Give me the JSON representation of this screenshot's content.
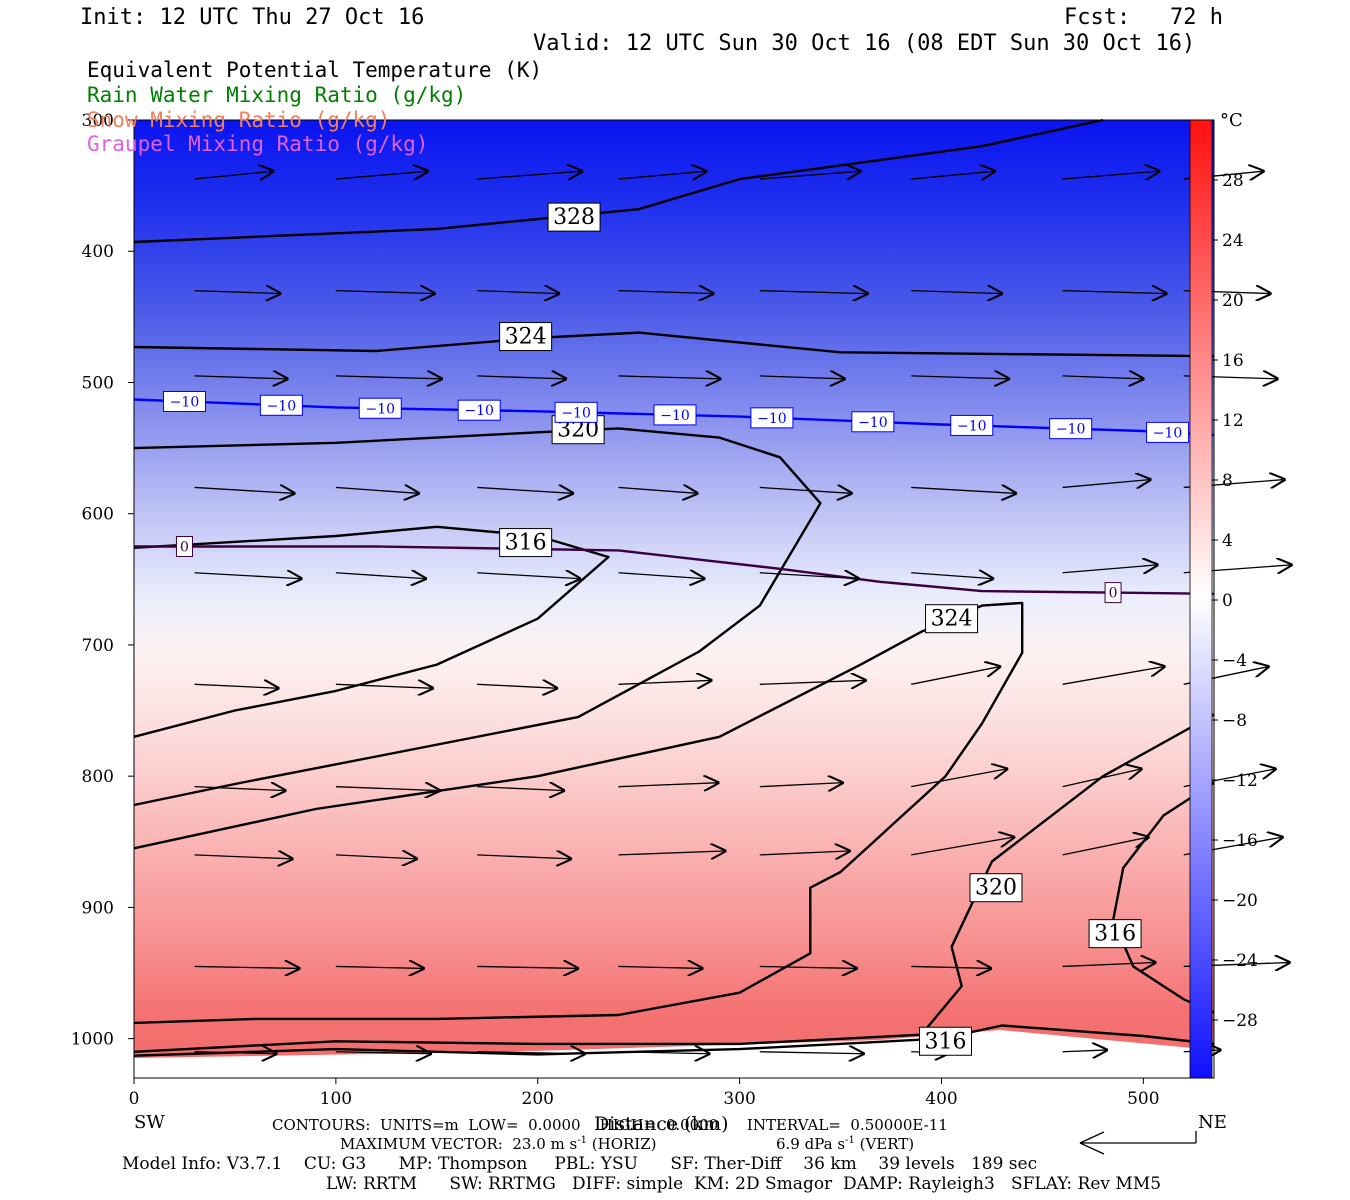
{
  "header": {
    "init": "Init: 12 UTC Thu 27 Oct 16",
    "fcst": "Fcst:   72 h",
    "valid": "Valid: 12 UTC Sun 30 Oct 16 (08 EDT Sun 30 Oct 16)"
  },
  "legend": {
    "theta_e": "Equivalent Potential Temperature (K)",
    "rain": "Rain Water Mixing Ratio (g/kg)",
    "snow": "Snow Mixing Ratio (g/kg)",
    "graupel": "Graupel Mixing Ratio (g/kg)",
    "colors": {
      "theta_e": "#000000",
      "rain": "#008000",
      "snow": "#f08060",
      "graupel": "#e060e0"
    }
  },
  "chart_data": {
    "type": "cross-section",
    "xlabel": "Distance (km)",
    "x_ticks": [
      0,
      100,
      200,
      300,
      400,
      500
    ],
    "xlim": [
      0,
      535
    ],
    "y_ticks": [
      300,
      400,
      500,
      600,
      700,
      800,
      900,
      1000
    ],
    "ylim": [
      1030,
      300
    ],
    "endpoints": {
      "left": "SW",
      "right": "NE"
    },
    "colorbar": {
      "unit": "°C",
      "ticks": [
        28,
        24,
        20,
        16,
        12,
        8,
        4,
        0,
        -4,
        -8,
        -12,
        -16,
        -20,
        -24,
        -28
      ]
    },
    "isotherms": [
      {
        "label": "-10",
        "color": "#0000ff",
        "points": [
          [
            0,
            513
          ],
          [
            100,
            519
          ],
          [
            200,
            522
          ],
          [
            300,
            526
          ],
          [
            400,
            532
          ],
          [
            500,
            537
          ],
          [
            535,
            540
          ]
        ],
        "label_x": [
          25,
          73,
          122,
          171,
          219,
          268,
          316,
          366,
          415,
          464,
          512
        ]
      },
      {
        "label": "0",
        "color": "#3a0040",
        "points": [
          [
            0,
            625
          ],
          [
            120,
            625
          ],
          [
            240,
            628
          ],
          [
            320,
            642
          ],
          [
            370,
            652
          ],
          [
            420,
            659
          ],
          [
            535,
            661
          ]
        ],
        "label_x": [
          25,
          485
        ]
      }
    ],
    "theta_e_contours": [
      {
        "value": 328,
        "points": [
          [
            0,
            393
          ],
          [
            150,
            383
          ],
          [
            250,
            368
          ],
          [
            300,
            345
          ],
          [
            420,
            320
          ],
          [
            480,
            300
          ]
        ],
        "label_at": [
          218,
          374
        ]
      },
      {
        "value": 324,
        "points": [
          [
            0,
            473
          ],
          [
            120,
            476
          ],
          [
            200,
            466
          ],
          [
            250,
            462
          ],
          [
            290,
            468
          ],
          [
            350,
            477
          ],
          [
            535,
            480
          ]
        ],
        "label_at": [
          194,
          465
        ]
      },
      {
        "value": 320,
        "points": [
          [
            0,
            550
          ],
          [
            100,
            546
          ],
          [
            200,
            538
          ],
          [
            240,
            535
          ],
          [
            290,
            542
          ],
          [
            320,
            557
          ],
          [
            340,
            592
          ],
          [
            310,
            670
          ],
          [
            280,
            705
          ],
          [
            220,
            755
          ],
          [
            120,
            785
          ],
          [
            50,
            806
          ],
          [
            0,
            822
          ]
        ],
        "label_at": [
          220,
          536
        ]
      },
      {
        "value": 316,
        "points": [
          [
            0,
            626
          ],
          [
            100,
            617
          ],
          [
            150,
            610
          ],
          [
            200,
            617
          ],
          [
            235,
            633
          ],
          [
            200,
            680
          ],
          [
            150,
            715
          ],
          [
            100,
            735
          ],
          [
            50,
            750
          ],
          [
            0,
            770
          ]
        ],
        "label_at": [
          194,
          622
        ]
      },
      {
        "value": 324,
        "points": [
          [
            0,
            855
          ],
          [
            90,
            825
          ],
          [
            200,
            800
          ],
          [
            290,
            770
          ],
          [
            360,
            715
          ],
          [
            390,
            690
          ],
          [
            420,
            670
          ],
          [
            440,
            668
          ],
          [
            440,
            706
          ],
          [
            420,
            760
          ],
          [
            402,
            800
          ],
          [
            370,
            845
          ],
          [
            350,
            873
          ],
          [
            335,
            885
          ],
          [
            335,
            935
          ],
          [
            300,
            965
          ],
          [
            240,
            982
          ],
          [
            150,
            985
          ],
          [
            60,
            985
          ],
          [
            0,
            988
          ]
        ],
        "label_at": [
          405,
          680
        ]
      },
      {
        "value": 320,
        "points": [
          [
            0,
            1010
          ],
          [
            100,
            1002
          ],
          [
            200,
            1004
          ],
          [
            300,
            1004
          ],
          [
            390,
            997
          ],
          [
            410,
            960
          ],
          [
            405,
            930
          ],
          [
            425,
            865
          ],
          [
            480,
            800
          ],
          [
            535,
            753
          ]
        ],
        "label_at": [
          427,
          885
        ]
      },
      {
        "value": 316,
        "points": [
          [
            0,
            1013
          ],
          [
            100,
            1008
          ],
          [
            200,
            1012
          ],
          [
            300,
            1008
          ],
          [
            400,
            1000
          ],
          [
            430,
            990
          ],
          [
            500,
            998
          ],
          [
            535,
            1004
          ]
        ],
        "label_at": [
          402,
          1002
        ]
      },
      {
        "value": 316,
        "points": [
          [
            535,
            805
          ],
          [
            510,
            830
          ],
          [
            490,
            870
          ],
          [
            485,
            910
          ],
          [
            495,
            945
          ],
          [
            520,
            970
          ],
          [
            535,
            980
          ]
        ],
        "label_at": [
          486,
          920
        ]
      }
    ],
    "wind_rows_hPa": [
      345,
      430,
      495,
      580,
      645,
      730,
      808,
      860,
      945,
      1010
    ],
    "wind_cols_km": [
      30,
      100,
      170,
      240,
      310,
      385,
      460,
      520
    ]
  },
  "footer": {
    "contours": "CONTOURS:  UNITS=m  LOW=  0.0000    HIGH=  0.0000      INTERVAL=  0.50000E-11",
    "maxvec_h": "MAXIMUM VECTOR:  23.0 m s",
    "maxvec_h_sup": "-1",
    "maxvec_h_tail": "(HORIZ)",
    "maxvec_v": "6.9 dPa s",
    "maxvec_v_sup": "-1",
    "maxvec_v_tail": "(VERT)",
    "model": "Model Info: V3.7.1    CU: G3      MP: Thompson     PBL: YSU      SF: Ther-Diff    36 km    39 levels   189 sec",
    "physics": "LW: RRTM      SW: RRTMG   DIFF: simple  KM: 2D Smagor  DAMP: Rayleigh3   SFLAY: Rev MM5"
  }
}
